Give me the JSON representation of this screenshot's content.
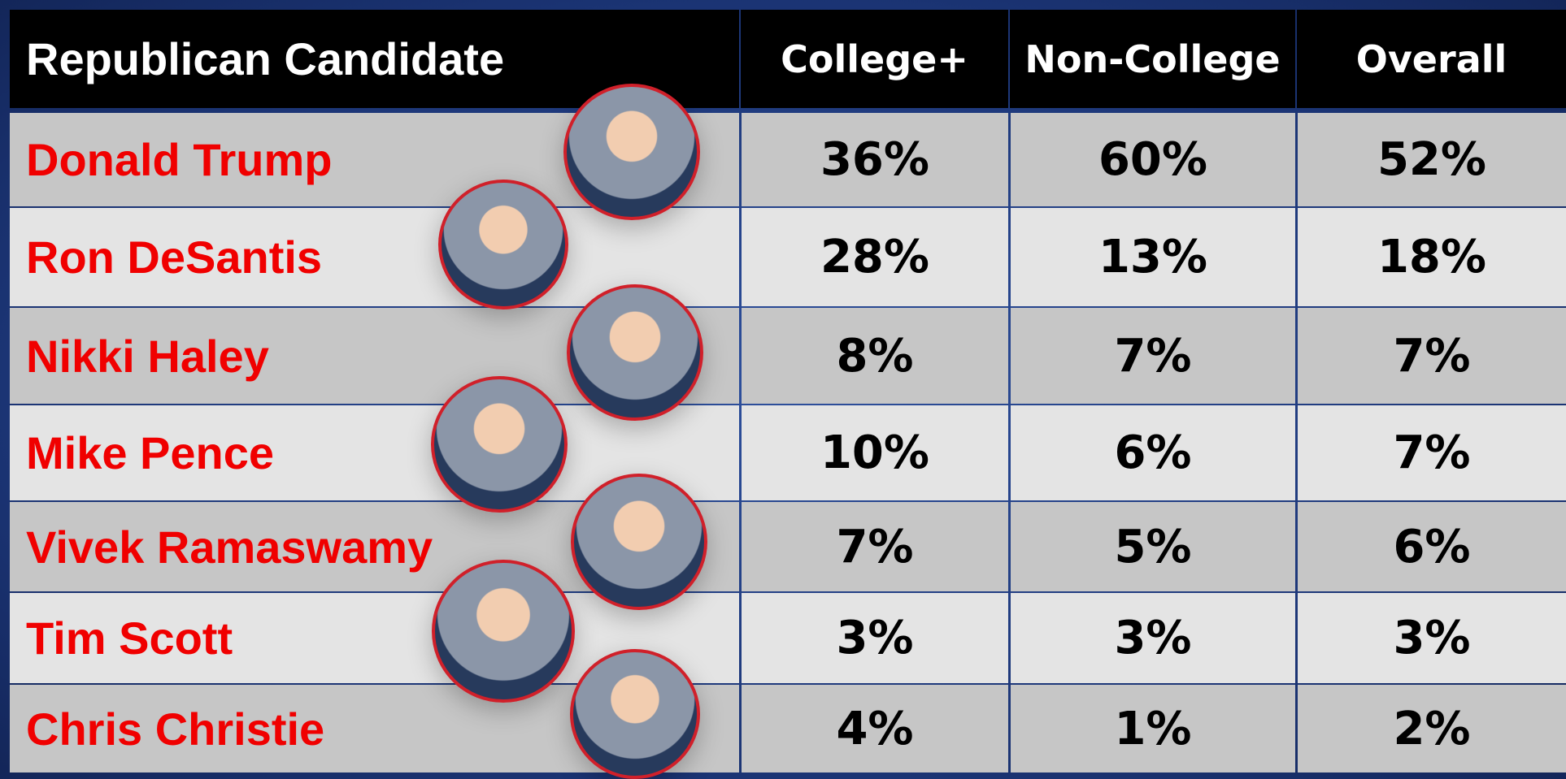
{
  "table": {
    "header": [
      "Republican Candidate",
      "College+",
      "Non-College",
      "Overall"
    ],
    "rows": [
      [
        "Donald Trump",
        "36%",
        "60%",
        "52%"
      ],
      [
        "Ron DeSantis",
        "28%",
        "13%",
        "18%"
      ],
      [
        "Nikki Haley",
        "8%",
        "7%",
        "7%"
      ],
      [
        "Mike Pence",
        "10%",
        "6%",
        "7%"
      ],
      [
        "Vivek Ramaswamy",
        "7%",
        "5%",
        "6%"
      ],
      [
        "Tim Scott",
        "3%",
        "3%",
        "3%"
      ],
      [
        "Chris Christie",
        "4%",
        "1%",
        "2%"
      ]
    ]
  }
}
